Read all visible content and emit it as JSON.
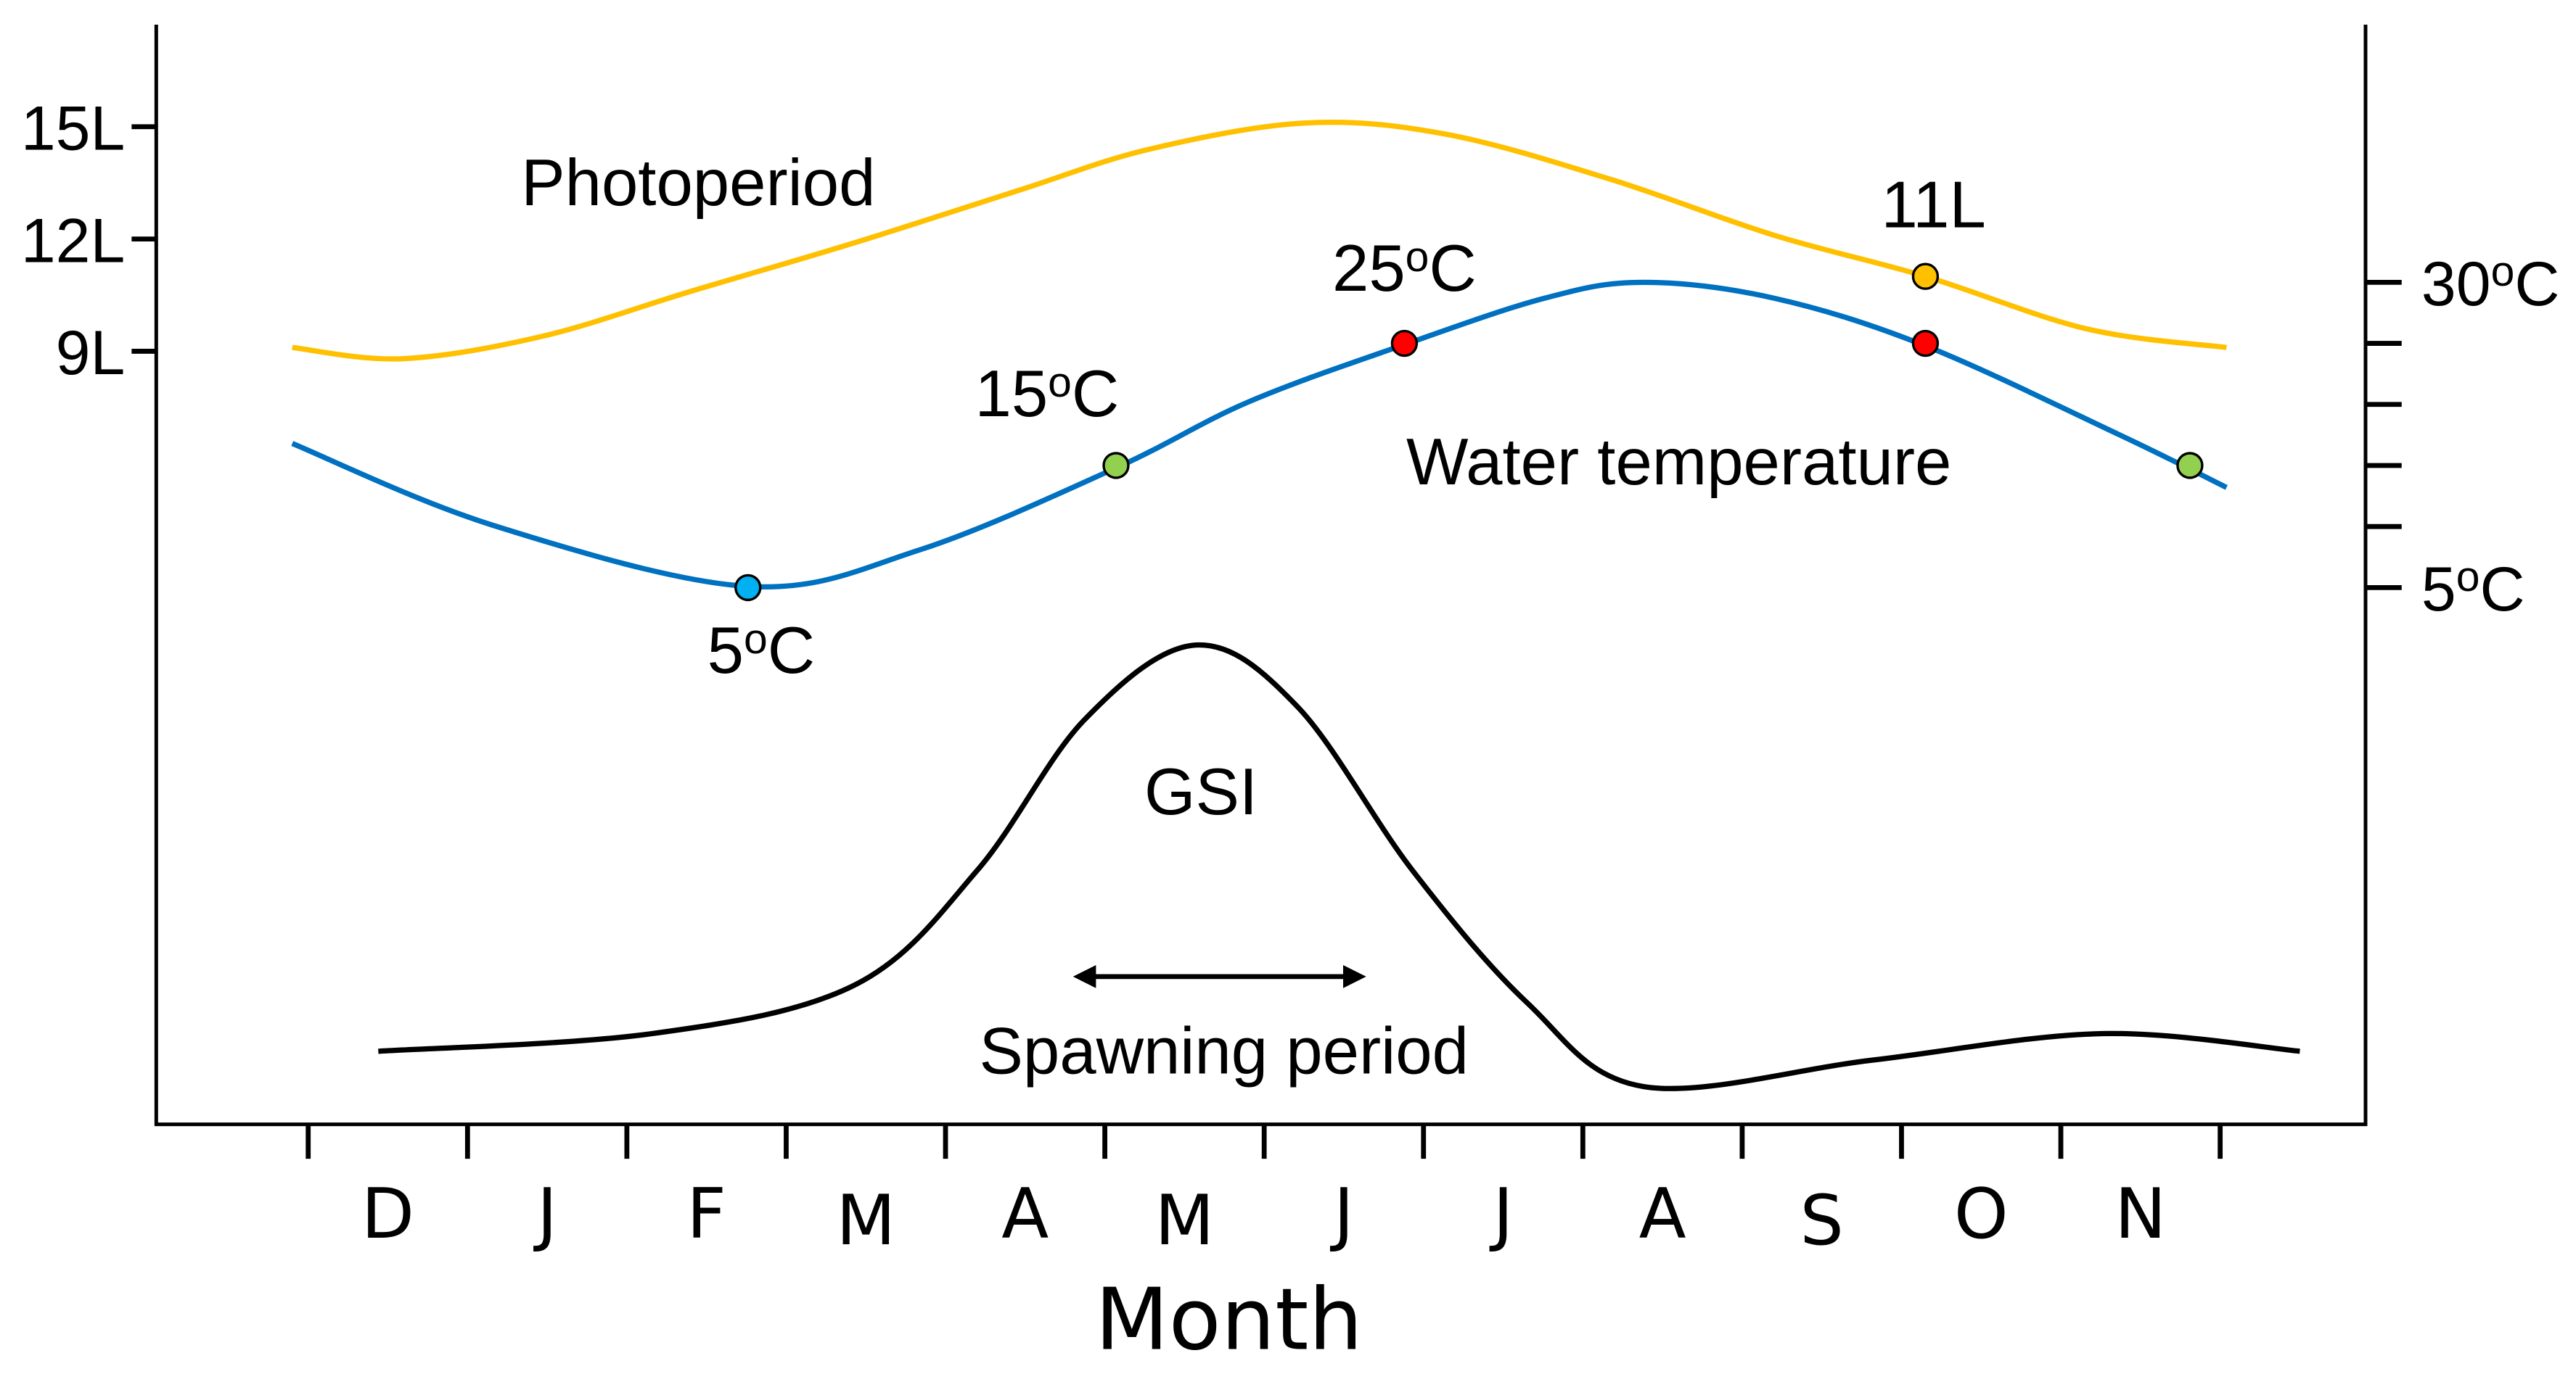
{
  "chart_data": {
    "type": "line",
    "xlabel": "Month",
    "categories": [
      "D",
      "J",
      "F",
      "M",
      "A",
      "M",
      "J",
      "J",
      "A",
      "S",
      "O",
      "N"
    ],
    "left_axis": {
      "ticks": [
        {
          "value": 15,
          "label": "15L"
        },
        {
          "value": 12,
          "label": "12L"
        },
        {
          "value": 9,
          "label": "9L"
        }
      ],
      "unit": "hours of light"
    },
    "right_axis": {
      "ticks": [
        {
          "value": 30,
          "label": "30oC"
        },
        {
          "value": 25,
          "label": ""
        },
        {
          "value": 20,
          "label": ""
        },
        {
          "value": 15,
          "label": ""
        },
        {
          "value": 10,
          "label": ""
        },
        {
          "value": 5,
          "label": "5oC"
        }
      ],
      "unit": "°C"
    },
    "series": [
      {
        "name": "Photoperiod",
        "label": "Photoperiod",
        "color": "#FFC000",
        "axis": "left",
        "x": [
          -0.6,
          0.09,
          0.97,
          1.9,
          2.93,
          3.96,
          4.78,
          5.76,
          6.64,
          7.67,
          8.7,
          9.65,
          10.66,
          11.54
        ],
        "y": [
          9.1,
          8.8,
          9.4,
          10.6,
          11.9,
          13.3,
          14.4,
          15.1,
          14.8,
          13.6,
          12.1,
          11.0,
          9.6,
          9.1
        ]
      },
      {
        "name": "Water temperature",
        "label": "Water temperature",
        "color": "#0070C0",
        "axis": "right",
        "x": [
          -0.6,
          0.66,
          2.26,
          3.34,
          4.57,
          5.4,
          6.38,
          7.26,
          7.88,
          8.7,
          9.65,
          10.87,
          11.54
        ],
        "y": [
          16.8,
          10.1,
          5.1,
          8.1,
          14.8,
          20.2,
          24.9,
          28.7,
          30,
          28.7,
          24.8,
          17.5,
          13.2
        ]
      },
      {
        "name": "GSI",
        "label": "GSI",
        "color": "#000000",
        "axis": "relative",
        "x": [
          -0.06,
          1.66,
          2.93,
          3.7,
          4.37,
          5.07,
          5.71,
          6.43,
          7.15,
          7.88,
          9.32,
          10.76,
          12.0
        ],
        "y": [
          0.08,
          0.12,
          0.23,
          0.49,
          0.83,
          1.0,
          0.86,
          0.49,
          0.19,
          0.0,
          0.06,
          0.12,
          0.08
        ]
      }
    ],
    "markers": [
      {
        "series": "Water temperature",
        "x": 2.26,
        "y": 5,
        "color": "#00B0F0",
        "label": "5oC"
      },
      {
        "series": "Water temperature",
        "x": 4.57,
        "y": 15,
        "color": "#92D050",
        "label": "15oC"
      },
      {
        "series": "Water temperature",
        "x": 6.38,
        "y": 25,
        "color": "#FF0000",
        "label": "25oC"
      },
      {
        "series": "Water temperature",
        "x": 9.65,
        "y": 25,
        "color": "#FF0000",
        "label": ""
      },
      {
        "series": "Water temperature",
        "x": 11.31,
        "y": 15,
        "color": "#92D050",
        "label": ""
      },
      {
        "series": "Photoperiod",
        "x": 9.65,
        "y": 11,
        "color": "#FFC000",
        "label": "11L"
      }
    ],
    "annotations": {
      "spawning_period": {
        "label": "Spawning period",
        "x_start": 4.3,
        "x_end": 6.14
      }
    },
    "grid": false
  }
}
